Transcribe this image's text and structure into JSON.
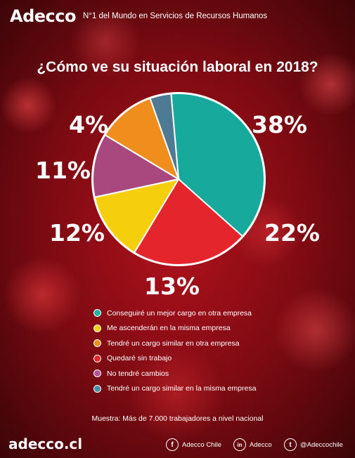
{
  "header": {
    "logo": "Adecco",
    "tagline": "N°1 del Mundo en Servicios de Recursos Humanos"
  },
  "title": "¿Cómo ve su situación laboral en 2018?",
  "chart_data": {
    "type": "pie",
    "title": "¿Cómo ve su situación laboral en 2018?",
    "categories": [
      "Conseguiré un mejor cargo en otra empresa",
      "Quedaré sin trabajo",
      "Me ascenderán en la misma empresa",
      "No tendré cambios",
      "Tendré un cargo similar en otra empresa",
      "Tendré un cargo similar en la misma empresa"
    ],
    "values": [
      38,
      22,
      13,
      12,
      11,
      4
    ],
    "labels": [
      "38%",
      "22%",
      "13%",
      "12%",
      "11%",
      "4%"
    ],
    "colors": [
      "#17a99c",
      "#e4262c",
      "#f5cf0c",
      "#a8487f",
      "#ef8e1c",
      "#4f7a93"
    ],
    "legend": "bottom"
  },
  "legend": [
    {
      "label": "Conseguiré un mejor cargo en otra empresa",
      "color": "#1fb5a3"
    },
    {
      "label": "Me ascenderán en la misma empresa",
      "color": "#f5cf0c"
    },
    {
      "label": "Tendré un cargo similar en otra empresa",
      "color": "#ef8e1c"
    },
    {
      "label": "Quedaré sin trabajo",
      "color": "#e4262c"
    },
    {
      "label": "No tendré cambios",
      "color": "#b0549a"
    },
    {
      "label": "Tendré un cargo similar en la misma empresa",
      "color": "#4f8aa8"
    }
  ],
  "sample": "Muestra: Más de 7.000 trabajadores a nivel nacional",
  "footer": {
    "website": "adecco.cl",
    "facebook": "Adecco Chile",
    "linkedin": "Adecco",
    "twitter": "@Adeccochile",
    "facebook_icon": "f",
    "linkedin_icon": "in",
    "twitter_icon": "t"
  }
}
